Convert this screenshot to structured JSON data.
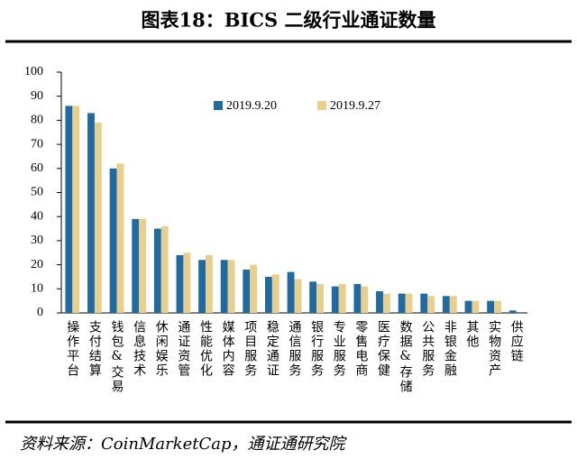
{
  "chart_data": {
    "type": "bar",
    "title": "图表18：BICS 二级行业通证数量",
    "source": "资料来源：CoinMarketCap，通证通研究院",
    "categories": [
      "操作平台",
      "支付结算",
      "钱包&交易",
      "信息技术",
      "休闲娱乐",
      "通证资管",
      "性能优化",
      "媒体内容",
      "项目服务",
      "稳定通证",
      "通信服务",
      "银行服务",
      "专业服务",
      "零售电商",
      "医疗保健",
      "数据&存储",
      "公共服务",
      "非银金融",
      "其他",
      "实物资产",
      "供应链"
    ],
    "series": [
      {
        "name": "2019.9.20",
        "color": "#1f6aa0",
        "values": [
          86,
          83,
          60,
          39,
          35,
          24,
          22,
          22,
          18,
          15,
          17,
          13,
          11,
          12,
          9,
          8,
          8,
          7,
          5,
          5,
          1
        ]
      },
      {
        "name": "2019.9.27",
        "color": "#e8cf8e",
        "values": [
          86,
          79,
          62,
          39,
          36,
          25,
          24,
          22,
          20,
          16,
          14,
          12,
          12,
          11,
          8,
          8,
          7,
          7,
          5,
          5,
          0
        ]
      }
    ],
    "ylim": [
      0,
      100
    ],
    "yticks": [
      0,
      10,
      20,
      30,
      40,
      50,
      60,
      70,
      80,
      90,
      100
    ]
  }
}
